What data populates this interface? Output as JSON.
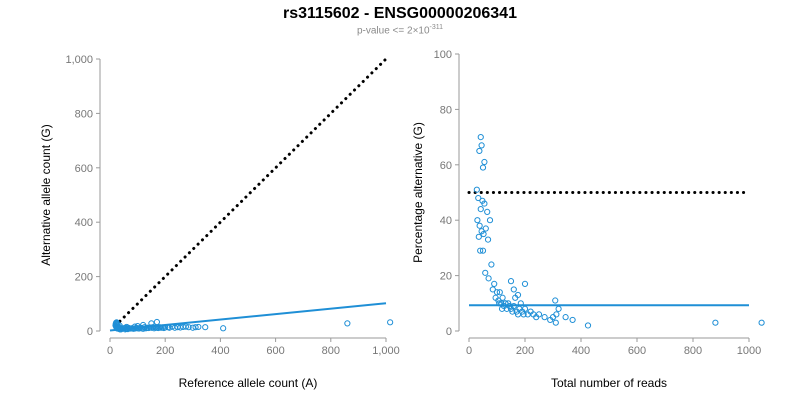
{
  "header": {
    "title": "rs3115602 - ENSG00000206341",
    "subtitle_prefix": "p-value <= 2",
    "subtitle_times": "×",
    "subtitle_base": "10",
    "subtitle_exponent": "-311"
  },
  "colors": {
    "points": "#1f8fd6",
    "fit_line": "#1f8fd6",
    "reference_line": "#000000",
    "axis": "#9a9a9a",
    "tick_label": "#777777",
    "axis_label": "#000000"
  },
  "chart_data": [
    {
      "type": "scatter",
      "title": "",
      "xlabel": "Reference allele count (A)",
      "ylabel": "Alternative allele count (G)",
      "xlim": [
        0,
        1000
      ],
      "ylim": [
        0,
        1000
      ],
      "xticks": [
        0,
        200,
        400,
        600,
        800,
        1000
      ],
      "yticks": [
        0,
        200,
        400,
        600,
        800,
        1000
      ],
      "xtick_labels": [
        "0",
        "200",
        "400",
        "600",
        "800",
        "1,000"
      ],
      "ytick_labels": [
        "0",
        "200",
        "400",
        "600",
        "800",
        "1,000"
      ],
      "grid": false,
      "reference_line": {
        "style": "dotted",
        "x": [
          20,
          1000
        ],
        "y": [
          20,
          1000
        ]
      },
      "fit_line": {
        "x": [
          0,
          1000
        ],
        "y": [
          2,
          102
        ]
      },
      "points": [
        [
          22,
          30
        ],
        [
          23,
          28
        ],
        [
          21,
          26
        ],
        [
          24,
          24
        ],
        [
          25,
          22
        ],
        [
          20,
          20
        ],
        [
          22,
          18
        ],
        [
          26,
          16
        ],
        [
          23,
          14
        ],
        [
          28,
          12
        ],
        [
          25,
          10
        ],
        [
          27,
          9
        ],
        [
          30,
          12
        ],
        [
          33,
          15
        ],
        [
          35,
          20
        ],
        [
          38,
          10
        ],
        [
          32,
          8
        ],
        [
          36,
          6
        ],
        [
          24,
          32
        ],
        [
          40,
          6
        ],
        [
          45,
          9
        ],
        [
          50,
          10
        ],
        [
          55,
          6
        ],
        [
          60,
          8
        ],
        [
          65,
          7
        ],
        [
          70,
          10
        ],
        [
          75,
          9
        ],
        [
          80,
          10
        ],
        [
          85,
          8
        ],
        [
          90,
          9
        ],
        [
          95,
          11
        ],
        [
          100,
          10
        ],
        [
          105,
          9
        ],
        [
          110,
          12
        ],
        [
          115,
          10
        ],
        [
          120,
          8
        ],
        [
          125,
          14
        ],
        [
          130,
          10
        ],
        [
          135,
          12
        ],
        [
          140,
          11
        ],
        [
          145,
          13
        ],
        [
          150,
          12
        ],
        [
          155,
          14
        ],
        [
          160,
          10
        ],
        [
          165,
          13
        ],
        [
          170,
          12
        ],
        [
          175,
          11
        ],
        [
          180,
          14
        ],
        [
          185,
          12
        ],
        [
          190,
          13
        ],
        [
          195,
          11
        ],
        [
          200,
          13
        ],
        [
          210,
          14
        ],
        [
          215,
          12
        ],
        [
          225,
          16
        ],
        [
          235,
          12
        ],
        [
          245,
          14
        ],
        [
          255,
          13
        ],
        [
          265,
          15
        ],
        [
          275,
          16
        ],
        [
          285,
          14
        ],
        [
          300,
          12
        ],
        [
          310,
          14
        ],
        [
          320,
          15
        ],
        [
          345,
          14
        ],
        [
          410,
          10
        ],
        [
          860,
          28
        ],
        [
          1015,
          32
        ],
        [
          150,
          28
        ],
        [
          170,
          33
        ],
        [
          120,
          22
        ],
        [
          100,
          18
        ],
        [
          90,
          16
        ],
        [
          60,
          15
        ],
        [
          65,
          12
        ],
        [
          55,
          11
        ]
      ]
    },
    {
      "type": "scatter",
      "title": "",
      "xlabel": "Total number of reads",
      "ylabel": "Percentage alternative (G)",
      "xlim": [
        0,
        1050
      ],
      "ylim": [
        0,
        100
      ],
      "xticks": [
        0,
        200,
        400,
        600,
        800,
        1000
      ],
      "yticks": [
        0,
        20,
        40,
        60,
        80,
        100
      ],
      "xtick_labels": [
        "0",
        "200",
        "400",
        "600",
        "800",
        "1000"
      ],
      "ytick_labels": [
        "0",
        "20",
        "40",
        "60",
        "80",
        "100"
      ],
      "grid": false,
      "reference_line": {
        "style": "dotted",
        "x": [
          0,
          1000
        ],
        "y": [
          50,
          50
        ]
      },
      "fit_line": {
        "x": [
          0,
          1000
        ],
        "y": [
          9.3,
          9.3
        ]
      },
      "points": [
        [
          42,
          70
        ],
        [
          45,
          67
        ],
        [
          37,
          65
        ],
        [
          55,
          61
        ],
        [
          50,
          59
        ],
        [
          28,
          51
        ],
        [
          33,
          48
        ],
        [
          48,
          47
        ],
        [
          55,
          46
        ],
        [
          42,
          44
        ],
        [
          65,
          43
        ],
        [
          30,
          40
        ],
        [
          38,
          38
        ],
        [
          45,
          36
        ],
        [
          35,
          34
        ],
        [
          52,
          35
        ],
        [
          68,
          33
        ],
        [
          40,
          29
        ],
        [
          50,
          29
        ],
        [
          58,
          21
        ],
        [
          80,
          24
        ],
        [
          70,
          19
        ],
        [
          90,
          17
        ],
        [
          85,
          15
        ],
        [
          100,
          14
        ],
        [
          95,
          12
        ],
        [
          105,
          11
        ],
        [
          110,
          14
        ],
        [
          115,
          10
        ],
        [
          120,
          12
        ],
        [
          125,
          9
        ],
        [
          130,
          10
        ],
        [
          135,
          8
        ],
        [
          140,
          10
        ],
        [
          145,
          9
        ],
        [
          150,
          8
        ],
        [
          155,
          7
        ],
        [
          160,
          9
        ],
        [
          165,
          12
        ],
        [
          170,
          7
        ],
        [
          175,
          6
        ],
        [
          180,
          8
        ],
        [
          185,
          10
        ],
        [
          190,
          7
        ],
        [
          195,
          6
        ],
        [
          200,
          8
        ],
        [
          210,
          6
        ],
        [
          220,
          7
        ],
        [
          230,
          6
        ],
        [
          240,
          5
        ],
        [
          250,
          6
        ],
        [
          270,
          5
        ],
        [
          290,
          4
        ],
        [
          300,
          5
        ],
        [
          310,
          3
        ],
        [
          312,
          6
        ],
        [
          308,
          11
        ],
        [
          320,
          8
        ],
        [
          150,
          18
        ],
        [
          160,
          15
        ],
        [
          175,
          13
        ],
        [
          200,
          17
        ],
        [
          130,
          10
        ],
        [
          345,
          5
        ],
        [
          370,
          4
        ],
        [
          425,
          2
        ],
        [
          880,
          3
        ],
        [
          1045,
          3
        ],
        [
          60,
          37
        ],
        [
          75,
          40
        ],
        [
          108,
          10
        ],
        [
          118,
          8
        ]
      ]
    }
  ]
}
